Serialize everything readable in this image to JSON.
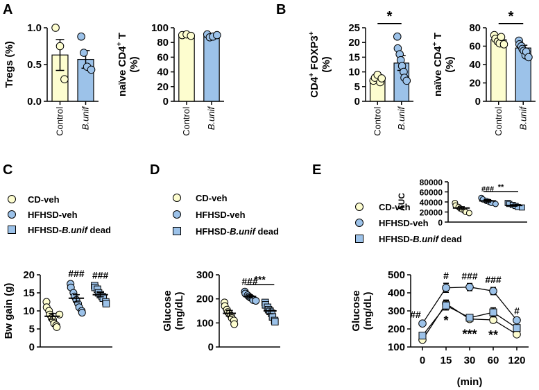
{
  "colors": {
    "cd": "#fdfdcf",
    "hf": "#9cc2e9",
    "dead": "#9cc2e9",
    "cd_line": "#000000",
    "hf_line": "#000000",
    "stroke": "#000000"
  },
  "panel_labels": {
    "A": "A",
    "B": "B",
    "C": "C",
    "D": "D",
    "E": "E"
  },
  "legend": {
    "cd": "CD-veh",
    "hf": "HFHSD-veh",
    "dead_prefix": "HFHSD-",
    "dead_italic": "B.unif",
    "dead_suffix": " dead"
  },
  "chart_data": [
    {
      "id": "A1",
      "type": "bar",
      "ylabel": "Tregs (%)",
      "ylim": [
        0,
        1.0
      ],
      "yticks": [
        "0.0",
        "0.5",
        "1.0"
      ],
      "ytick_values": [
        0,
        0.5,
        1.0
      ],
      "categories": [
        "Control",
        "B.unif"
      ],
      "category_italic": [
        false,
        true
      ],
      "series": [
        {
          "name": "Control",
          "mean": 0.63,
          "sem": 0.21,
          "points": [
            1.0,
            0.75,
            0.3
          ],
          "color": "#fdfdcf"
        },
        {
          "name": "B.unif",
          "mean": 0.57,
          "sem": 0.12,
          "points": [
            0.88,
            0.66,
            0.47,
            0.43
          ],
          "color": "#9cc2e9"
        }
      ],
      "significance": []
    },
    {
      "id": "A2",
      "type": "bar",
      "ylabel_main": "naïve CD4",
      "ylabel_sup": "+",
      "ylabel_tail": " T",
      "ylabel_line2": "(%)",
      "ylim": [
        0,
        100
      ],
      "yticks": [
        "0",
        "20",
        "40",
        "60",
        "80",
        "100"
      ],
      "ytick_values": [
        0,
        20,
        40,
        60,
        80,
        100
      ],
      "categories": [
        "Control",
        "B.unif"
      ],
      "category_italic": [
        false,
        true
      ],
      "series": [
        {
          "name": "Control",
          "mean": 90,
          "sem": 1,
          "points": [
            90,
            91,
            89
          ],
          "color": "#fdfdcf"
        },
        {
          "name": "B.unif",
          "mean": 89,
          "sem": 1.5,
          "points": [
            91,
            87,
            88,
            90
          ],
          "color": "#9cc2e9"
        }
      ],
      "significance": []
    },
    {
      "id": "B1",
      "type": "bar",
      "ylabel_main": "CD4",
      "ylabel_sup": "+",
      "ylabel_tail": " FOXP3",
      "ylabel_sup2": "+",
      "ylabel_line2": "(%)",
      "ylim": [
        0,
        25
      ],
      "yticks": [
        "0",
        "5",
        "10",
        "15",
        "20",
        "25"
      ],
      "ytick_values": [
        0,
        5,
        10,
        15,
        20,
        25
      ],
      "categories": [
        "Control",
        "B.unif"
      ],
      "category_italic": [
        false,
        true
      ],
      "series": [
        {
          "name": "Control",
          "mean": 7.5,
          "sem": 0.5,
          "points": [
            7,
            8,
            9,
            6.5,
            7.8
          ],
          "color": "#fdfdcf"
        },
        {
          "name": "B.unif",
          "mean": 13,
          "sem": 2.5,
          "points": [
            22,
            18,
            16,
            14,
            12,
            10,
            8,
            7
          ],
          "color": "#9cc2e9"
        }
      ],
      "significance": [
        {
          "label": "*"
        }
      ]
    },
    {
      "id": "B2",
      "type": "bar",
      "ylabel_main": "naïve CD4",
      "ylabel_sup": "+",
      "ylabel_tail": " T",
      "ylabel_line2": "(%)",
      "ylim": [
        0,
        80
      ],
      "yticks": [
        "0",
        "20",
        "40",
        "60",
        "80"
      ],
      "ytick_values": [
        0,
        20,
        40,
        60,
        80
      ],
      "categories": [
        "Control",
        "B.unif"
      ],
      "category_italic": [
        false,
        true
      ],
      "series": [
        {
          "name": "Control",
          "mean": 67,
          "sem": 2.5,
          "points": [
            72,
            68,
            65,
            63,
            70,
            62
          ],
          "color": "#fdfdcf"
        },
        {
          "name": "B.unif",
          "mean": 58,
          "sem": 3,
          "points": [
            66,
            62,
            60,
            57,
            55,
            50,
            54,
            48
          ],
          "color": "#9cc2e9"
        }
      ],
      "significance": [
        {
          "label": "*"
        }
      ]
    },
    {
      "id": "C",
      "type": "scatter",
      "ylabel": "Bw gain (g)",
      "ylim": [
        0,
        20
      ],
      "yticks": [
        "0",
        "5",
        "10",
        "15",
        "20"
      ],
      "ytick_values": [
        0,
        5,
        10,
        15,
        20
      ],
      "groups": [
        {
          "name": "CD-veh",
          "mean": 8.5,
          "sem": 0.8,
          "points": [
            12.5,
            11,
            10,
            9,
            8,
            7.5,
            6.5,
            6,
            5.5,
            9
          ],
          "marker": "circle",
          "color": "#fdfdcf"
        },
        {
          "name": "HFHSD-veh",
          "mean": 13.5,
          "sem": 1,
          "points": [
            17.5,
            16.5,
            15,
            14,
            13,
            12,
            11,
            10,
            9.5
          ],
          "marker": "circle",
          "color": "#9cc2e9"
        },
        {
          "name": "HFHSD-B.unif dead",
          "mean": 14.5,
          "sem": 0.6,
          "points": [
            17,
            16.5,
            16,
            15,
            14.5,
            14,
            13.5,
            12.5,
            12
          ],
          "marker": "square",
          "color": "#9cc2e9"
        }
      ],
      "annotations": [
        {
          "group": 1,
          "label": "###"
        },
        {
          "group": 2,
          "label": "###"
        }
      ]
    },
    {
      "id": "D",
      "type": "scatter",
      "ylabel": "Glucose",
      "ylabel_line2": "(mg/dL)",
      "ylim": [
        0,
        300
      ],
      "yticks": [
        "0",
        "100",
        "200",
        "300"
      ],
      "ytick_values": [
        0,
        100,
        200,
        300
      ],
      "groups": [
        {
          "name": "CD-veh",
          "mean": 140,
          "sem": 12,
          "points": [
            185,
            170,
            155,
            145,
            138,
            130,
            120,
            110,
            95
          ],
          "marker": "circle",
          "color": "#fdfdcf"
        },
        {
          "name": "HFHSD-veh",
          "mean": 210,
          "sem": 6,
          "points": [
            230,
            222,
            215,
            210,
            205,
            200,
            195,
            192
          ],
          "marker": "circle",
          "color": "#9cc2e9"
        },
        {
          "name": "HFHSD-B.unif dead",
          "mean": 150,
          "sem": 12,
          "points": [
            185,
            175,
            165,
            155,
            148,
            140,
            125,
            110,
            105
          ],
          "marker": "square",
          "color": "#9cc2e9"
        }
      ],
      "annotations": [
        {
          "group": 1,
          "label": "###"
        },
        {
          "bracket": [
            1,
            2
          ],
          "label": "***"
        }
      ]
    },
    {
      "id": "E_AUC",
      "type": "scatter",
      "ylabel": "AUC",
      "ylim": [
        0,
        80000
      ],
      "yticks": [
        "0",
        "20000",
        "40000",
        "60000",
        "80000"
      ],
      "ytick_values": [
        0,
        20000,
        40000,
        60000,
        80000
      ],
      "groups": [
        {
          "name": "CD-veh",
          "mean": 28000,
          "sem": 2500,
          "points": [
            38000,
            33000,
            30000,
            27000,
            25000,
            22000,
            20000,
            18000
          ],
          "marker": "circle",
          "color": "#fdfdcf"
        },
        {
          "name": "HFHSD-veh",
          "mean": 42000,
          "sem": 2500,
          "points": [
            48000,
            45000,
            42000,
            40000,
            38000,
            36000
          ],
          "marker": "circle",
          "color": "#9cc2e9"
        },
        {
          "name": "HFHSD-B.unif dead",
          "mean": 33000,
          "sem": 1500,
          "points": [
            38000,
            36000,
            34000,
            32000,
            30000,
            29000
          ],
          "marker": "square",
          "color": "#9cc2e9"
        }
      ],
      "annotations": [
        {
          "group": 1,
          "label": "###"
        },
        {
          "bracket": [
            1,
            2
          ],
          "label": "**"
        }
      ]
    },
    {
      "id": "E_curve",
      "type": "line",
      "xlabel": "(min)",
      "ylabel": "Glucose",
      "ylabel_line2": "(mg/dL)",
      "x": [
        "0",
        "15",
        "30",
        "60",
        "120"
      ],
      "ylim": [
        100,
        500
      ],
      "yticks": [
        "100",
        "200",
        "300",
        "400",
        "500"
      ],
      "ytick_values": [
        100,
        200,
        300,
        400,
        500
      ],
      "series": [
        {
          "name": "CD-veh",
          "values": [
            140,
            340,
            255,
            250,
            170
          ],
          "sem": [
            5,
            20,
            15,
            15,
            5
          ],
          "marker": "circle",
          "color": "#fdfdcf"
        },
        {
          "name": "HFHSD-veh",
          "values": [
            230,
            428,
            432,
            410,
            248
          ],
          "sem": [
            8,
            25,
            20,
            20,
            10
          ],
          "marker": "circle",
          "color": "#9cc2e9"
        },
        {
          "name": "HFHSD-B.unif dead",
          "values": [
            163,
            330,
            262,
            292,
            205
          ],
          "sem": [
            10,
            25,
            15,
            25,
            15
          ],
          "marker": "square",
          "color": "#9cc2e9"
        }
      ],
      "annotations_above": [
        "##",
        "#",
        "###",
        "###",
        "#"
      ],
      "annotations_below": [
        "",
        "*",
        "***",
        "**",
        ""
      ]
    }
  ]
}
